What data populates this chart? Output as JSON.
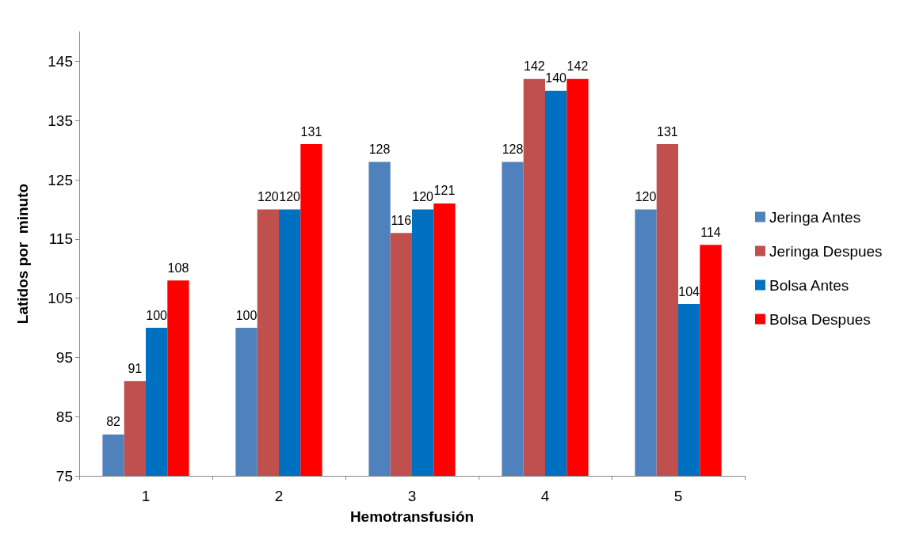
{
  "chart_data": {
    "type": "bar",
    "xlabel": "Hemotransfusión",
    "ylabel": "Latidos por  minuto",
    "categories": [
      "1",
      "2",
      "3",
      "4",
      "5"
    ],
    "series": [
      {
        "name": "Jeringa Antes",
        "color": "#4f81bd",
        "values": [
          82,
          100,
          128,
          128,
          120
        ]
      },
      {
        "name": "Jeringa Despues",
        "color": "#c0504d",
        "values": [
          91,
          120,
          116,
          142,
          131
        ]
      },
      {
        "name": "Bolsa Antes",
        "color": "#0070c0",
        "values": [
          100,
          120,
          120,
          140,
          104
        ]
      },
      {
        "name": "Bolsa Despues",
        "color": "#ff0000",
        "values": [
          108,
          131,
          121,
          142,
          114
        ]
      }
    ],
    "ylim": [
      75,
      150
    ],
    "yticks": [
      75,
      85,
      95,
      105,
      115,
      125,
      135,
      145
    ],
    "grid": false,
    "legend": "right",
    "data_labels": true
  }
}
